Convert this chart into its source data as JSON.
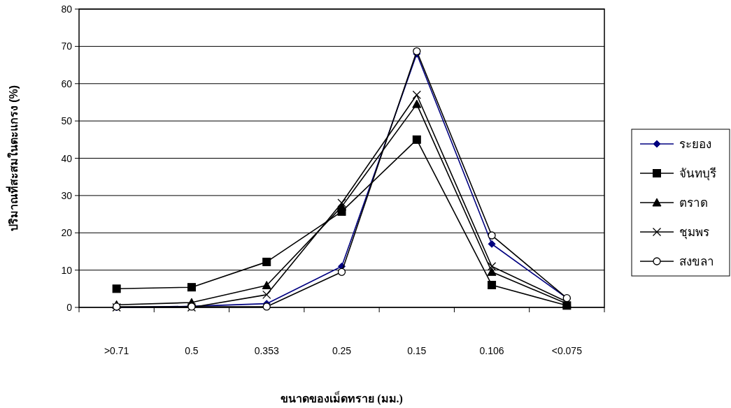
{
  "chart_data": {
    "type": "line",
    "xlabel": "ขนาดของเม็ดทราย (มม.)",
    "ylabel": "ปริมาณที่สะสมในตะแกรง (%)",
    "categories": [
      ">0.71",
      "0.5",
      "0.353",
      "0.25",
      "0.15",
      "0.106",
      "<0.075"
    ],
    "series": [
      {
        "name": "ระยอง",
        "color": "#000080",
        "marker": "diamond",
        "values": [
          0,
          0.3,
          1,
          11,
          68,
          17,
          2.5
        ]
      },
      {
        "name": "จันทบุรี",
        "color": "#000000",
        "marker": "square",
        "values": [
          5,
          5.4,
          12.2,
          25.7,
          45,
          6,
          0.5
        ]
      },
      {
        "name": "ตราด",
        "color": "#000000",
        "marker": "triangle",
        "values": [
          0.7,
          1.3,
          5.9,
          27,
          54.5,
          9.5,
          1
        ]
      },
      {
        "name": "ชุมพร",
        "color": "#000000",
        "marker": "cross",
        "values": [
          0,
          0,
          3.4,
          28,
          57,
          11,
          1.5
        ]
      },
      {
        "name": "สงขลา",
        "color": "#000000",
        "marker": "circle",
        "values": [
          0.2,
          0.2,
          0.2,
          9.5,
          68.7,
          19.3,
          2.5
        ]
      }
    ],
    "ylim": [
      0,
      80
    ],
    "yticks": [
      0,
      10,
      20,
      30,
      40,
      50,
      60,
      70,
      80
    ],
    "grid": "y",
    "legend": "right",
    "line_style": "solid"
  }
}
